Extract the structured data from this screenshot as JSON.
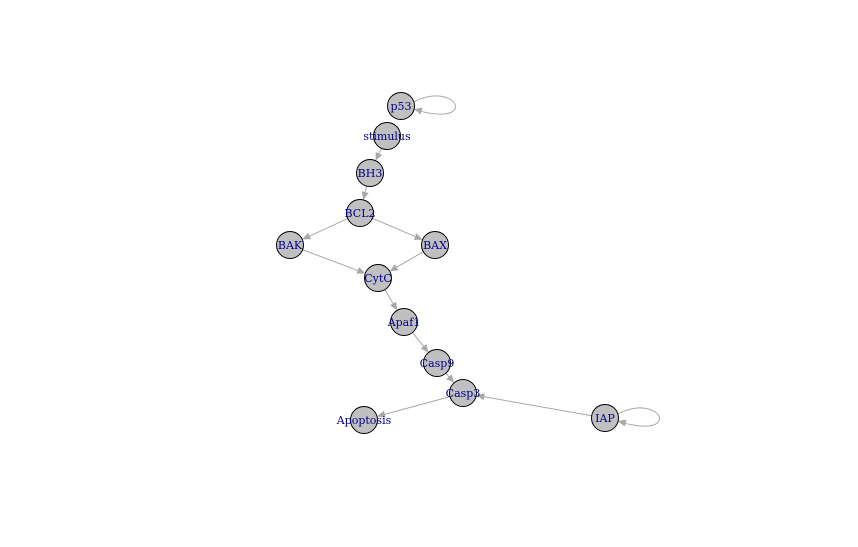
{
  "diagram": {
    "nodes": [
      {
        "id": "p53",
        "label": "p53"
      },
      {
        "id": "stimulus",
        "label": "stimulus"
      },
      {
        "id": "BH3",
        "label": "BH3"
      },
      {
        "id": "BCL2",
        "label": "BCL2"
      },
      {
        "id": "BAK",
        "label": "BAK"
      },
      {
        "id": "BAX",
        "label": "BAX"
      },
      {
        "id": "CytC",
        "label": "CytC"
      },
      {
        "id": "Apaf1",
        "label": "Apaf1"
      },
      {
        "id": "Casp9",
        "label": "Casp9"
      },
      {
        "id": "Casp3",
        "label": "Casp3"
      },
      {
        "id": "Apoptosis",
        "label": "Apoptosis"
      },
      {
        "id": "IAP",
        "label": "IAP"
      }
    ],
    "edges": [
      {
        "from": "p53",
        "to": "p53"
      },
      {
        "from": "stimulus",
        "to": "BH3"
      },
      {
        "from": "BH3",
        "to": "BCL2"
      },
      {
        "from": "BCL2",
        "to": "BAK"
      },
      {
        "from": "BCL2",
        "to": "BAX"
      },
      {
        "from": "BAK",
        "to": "CytC"
      },
      {
        "from": "BAX",
        "to": "CytC"
      },
      {
        "from": "CytC",
        "to": "Apaf1"
      },
      {
        "from": "Apaf1",
        "to": "Casp9"
      },
      {
        "from": "Casp9",
        "to": "Casp3"
      },
      {
        "from": "Casp3",
        "to": "Apoptosis"
      },
      {
        "from": "IAP",
        "to": "Casp3"
      },
      {
        "from": "IAP",
        "to": "IAP"
      }
    ],
    "colors": {
      "node_fill": "#c0c0c0",
      "node_stroke": "#000000",
      "label": "#00008b",
      "edge": "#a8a8a8"
    }
  }
}
